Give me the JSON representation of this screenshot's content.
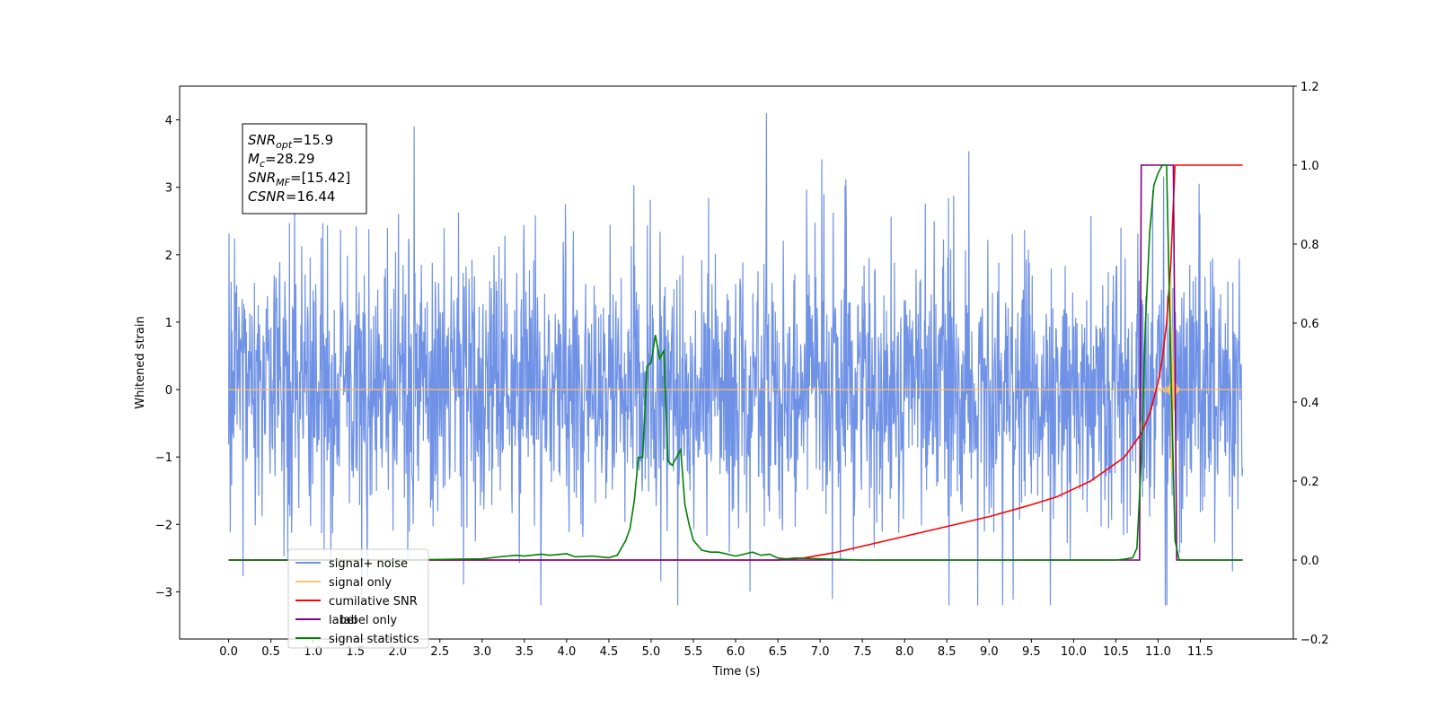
{
  "chart_data": {
    "type": "line",
    "xlabel": "Time (s)",
    "ylabel": "Whitened strain",
    "xlim": [
      -0.58,
      12.6
    ],
    "ylim": [
      -3.7,
      4.5
    ],
    "y2lim": [
      -0.2,
      1.2
    ],
    "xticks": [
      0.0,
      0.5,
      1.0,
      1.5,
      2.0,
      2.5,
      3.0,
      3.5,
      4.0,
      4.5,
      5.0,
      5.5,
      6.0,
      6.5,
      7.0,
      7.5,
      8.0,
      8.5,
      9.0,
      9.5,
      10.0,
      10.5,
      11.0,
      11.5
    ],
    "xtick_labels": [
      "0.0",
      "0.5",
      "1.0",
      "1.5",
      "2.0",
      "2.5",
      "3.0",
      "3.5",
      "4.0",
      "4.5",
      "5.0",
      "5.5",
      "6.0",
      "6.5",
      "7.0",
      "7.5",
      "8.0",
      "8.5",
      "9.0",
      "9.5",
      "10.0",
      "10.5",
      "11.0",
      "11.5"
    ],
    "yticks": [
      -3,
      -2,
      -1,
      0,
      1,
      2,
      3,
      4
    ],
    "ytick_labels": [
      "−3",
      "−2",
      "−1",
      "0",
      "1",
      "2",
      "3",
      "4"
    ],
    "y2ticks": [
      -0.2,
      0.0,
      0.2,
      0.4,
      0.6,
      0.8,
      1.0,
      1.2
    ],
    "y2tick_labels": [
      "−0.2",
      "0.0",
      "0.2",
      "0.4",
      "0.6",
      "0.8",
      "1.0",
      "1.2"
    ],
    "annotation": [
      {
        "main": "SNR",
        "sub": "opt",
        "rest": "=15.9"
      },
      {
        "main": "M",
        "sub": "c",
        "rest": "=28.29"
      },
      {
        "main": "SNR",
        "sub": "MF",
        "rest": "=[15.42]"
      },
      {
        "main": "CSNR",
        "sub": "",
        "rest": "=16.44"
      }
    ],
    "legend_position": "bottom-left",
    "legend": [
      {
        "label": "signal+ noise",
        "color": "#7092e6"
      },
      {
        "label": "signal only",
        "color": "#ffc266"
      },
      {
        "label": "cumilative SNR",
        "color": "#ff0000"
      },
      {
        "label": "label",
        "color": "#800080"
      },
      {
        "label": "signal statistics",
        "color": "#008000"
      }
    ],
    "legend_hidden_text": "label only",
    "series": [
      {
        "name": "signal+ noise",
        "axis": "left",
        "color": "#7092e6",
        "x_range": [
          0.0,
          12.0
        ],
        "noise_envelope": {
          "typical_low": -1.5,
          "typical_high": 1.5,
          "max_peak": 4.1,
          "min_trough": -3.2
        }
      },
      {
        "name": "signal only",
        "axis": "left",
        "color": "#ffc266",
        "x_range": [
          0.0,
          12.0
        ],
        "chirp": {
          "merger_time": 11.15,
          "peak_amplitude": 2.5,
          "ringdown_end": 11.25
        }
      },
      {
        "name": "cumilative SNR",
        "axis": "right",
        "color": "#ff0000",
        "x": [
          0.0,
          6.5,
          6.8,
          7.2,
          7.6,
          8.0,
          8.5,
          9.0,
          9.5,
          9.8,
          10.0,
          10.2,
          10.4,
          10.6,
          10.7,
          10.8,
          10.9,
          11.0,
          11.05,
          11.1,
          11.15,
          11.18,
          11.2,
          12.0
        ],
        "y": [
          0.0,
          0.0,
          0.005,
          0.02,
          0.04,
          0.06,
          0.085,
          0.11,
          0.14,
          0.16,
          0.18,
          0.2,
          0.23,
          0.26,
          0.29,
          0.32,
          0.37,
          0.45,
          0.51,
          0.6,
          0.75,
          0.9,
          1.0,
          1.0
        ]
      },
      {
        "name": "label",
        "axis": "right",
        "color": "#800080",
        "x": [
          0.0,
          10.78,
          10.8,
          11.18,
          11.22,
          12.0
        ],
        "y": [
          0.0,
          0.0,
          1.0,
          1.0,
          0.0,
          0.0
        ]
      },
      {
        "name": "signal statistics",
        "axis": "right",
        "color": "#008000",
        "x": [
          0.0,
          2.0,
          3.0,
          3.2,
          3.4,
          3.5,
          3.7,
          3.8,
          4.0,
          4.1,
          4.3,
          4.5,
          4.6,
          4.7,
          4.75,
          4.8,
          4.85,
          4.9,
          4.95,
          5.0,
          5.05,
          5.1,
          5.15,
          5.2,
          5.25,
          5.3,
          5.35,
          5.4,
          5.45,
          5.5,
          5.6,
          5.7,
          5.8,
          6.0,
          6.2,
          6.3,
          6.4,
          6.5,
          6.6,
          6.7,
          7.0,
          7.5,
          8.0,
          8.5,
          10.0,
          10.5,
          10.6,
          10.7,
          10.75,
          10.8,
          10.85,
          10.9,
          10.95,
          11.0,
          11.05,
          11.1,
          11.15,
          11.2,
          11.25,
          12.0
        ],
        "y": [
          0.0,
          0.0,
          0.003,
          0.008,
          0.012,
          0.01,
          0.015,
          0.012,
          0.016,
          0.008,
          0.01,
          0.006,
          0.012,
          0.05,
          0.08,
          0.15,
          0.26,
          0.26,
          0.49,
          0.5,
          0.57,
          0.51,
          0.53,
          0.25,
          0.24,
          0.26,
          0.28,
          0.14,
          0.09,
          0.05,
          0.025,
          0.02,
          0.02,
          0.01,
          0.02,
          0.012,
          0.015,
          0.005,
          0.003,
          0.005,
          0.003,
          0.0,
          0.0,
          0.0,
          0.0,
          0.0,
          0.002,
          0.006,
          0.03,
          0.25,
          0.6,
          0.83,
          0.95,
          0.98,
          1.0,
          1.0,
          0.5,
          0.05,
          0.0,
          0.0
        ]
      }
    ]
  }
}
